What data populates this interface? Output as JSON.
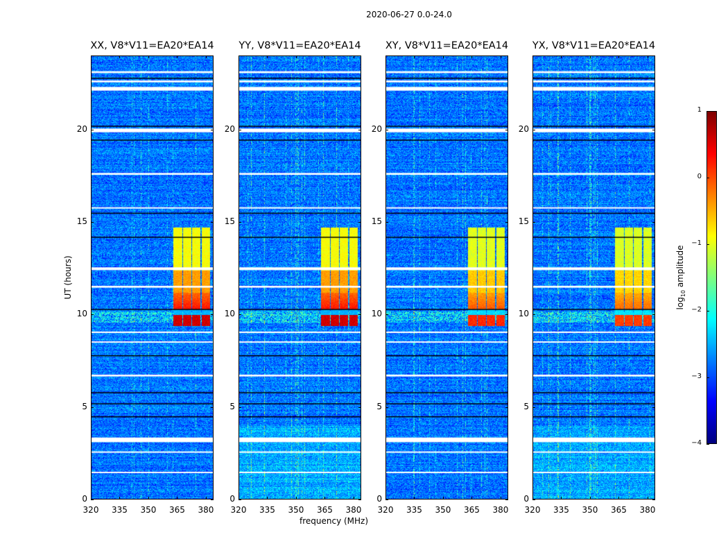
{
  "chart_data": {
    "type": "heatmap",
    "title": "2020-06-27 0.0-24.0",
    "xlabel": "frequency (MHz)",
    "ylabel": "UT (hours)",
    "xlim": [
      320,
      384
    ],
    "ylim": [
      0,
      24
    ],
    "xticks": [
      320,
      335,
      350,
      365,
      380
    ],
    "yticks": [
      0,
      5,
      10,
      15,
      20
    ],
    "panels": [
      {
        "title": "XX, V8*V11=EA20*EA14",
        "rfi_level": 1.0
      },
      {
        "title": "YY, V8*V11=EA20*EA14",
        "rfi_level": 1.0
      },
      {
        "title": "XY, V8*V11=EA20*EA14",
        "rfi_level": 0.8
      },
      {
        "title": "YX, V8*V11=EA20*EA14",
        "rfi_level": 0.75
      }
    ],
    "background_log_amplitude": -2.8,
    "rfi_block": {
      "freq_range_mhz": [
        362.5,
        382
      ],
      "subchannels": 4,
      "time_range_hours": [
        9.4,
        14.7
      ]
    },
    "flagged_hours_white": [
      [
        23.05,
        23.15
      ],
      [
        22.55,
        22.65
      ],
      [
        22.1,
        22.3
      ],
      [
        19.85,
        20.05
      ],
      [
        17.55,
        17.65
      ],
      [
        15.75,
        15.8
      ],
      [
        12.4,
        12.55
      ],
      [
        11.45,
        11.55
      ],
      [
        9.0,
        9.08
      ],
      [
        8.5,
        8.55
      ],
      [
        6.65,
        6.75
      ],
      [
        3.1,
        3.35
      ],
      [
        2.55,
        2.6
      ],
      [
        1.45,
        1.5
      ]
    ],
    "dark_lines_hours": [
      22.8,
      20.2,
      19.45,
      15.5,
      14.2,
      10.3,
      7.8,
      5.8,
      5.2,
      4.5
    ],
    "colorbar": {
      "label": "log10 amplitude",
      "label_main": "log",
      "label_sub": "10",
      "label_rest": " amplitude",
      "range": [
        -4,
        1
      ],
      "ticks": [
        1,
        0,
        -1,
        -2,
        -3,
        -4
      ],
      "tick_labels": [
        "1",
        "0",
        "−1",
        "−2",
        "−3",
        "−4"
      ],
      "colormap": "jet"
    }
  }
}
